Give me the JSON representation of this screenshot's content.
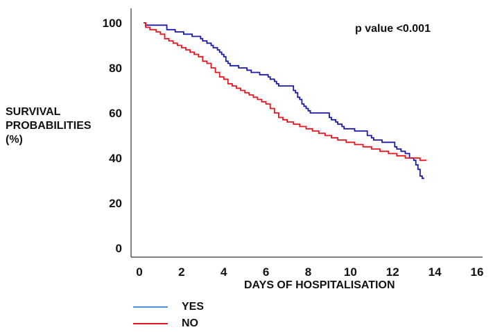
{
  "chart_data": {
    "type": "line",
    "title": "",
    "annotation": "p value <0.001",
    "xlabel": "DAYS OF HOSPITALISATION",
    "ylabel_lines": [
      "SURVIVAL",
      "PROBABILITIES",
      "(%)"
    ],
    "xlim": [
      0,
      16
    ],
    "ylim": [
      0,
      100
    ],
    "x_ticks": [
      0,
      2,
      4,
      6,
      8,
      10,
      12,
      14,
      16
    ],
    "y_ticks": [
      0,
      20,
      40,
      60,
      80,
      100
    ],
    "grid": false,
    "legend_position": "bottom-left",
    "series": [
      {
        "name": "YES",
        "color": "#1a1aa8",
        "legend_color": "#4a90d9",
        "points": [
          [
            0.2,
            100
          ],
          [
            0.3,
            99
          ],
          [
            0.4,
            99
          ],
          [
            1.2,
            99
          ],
          [
            1.3,
            97
          ],
          [
            1.6,
            97
          ],
          [
            1.7,
            96
          ],
          [
            2.0,
            96
          ],
          [
            2.1,
            95
          ],
          [
            2.4,
            95
          ],
          [
            2.5,
            94
          ],
          [
            2.8,
            94
          ],
          [
            2.9,
            93
          ],
          [
            3.0,
            92
          ],
          [
            3.2,
            91
          ],
          [
            3.4,
            90
          ],
          [
            3.5,
            89
          ],
          [
            3.7,
            88
          ],
          [
            3.8,
            87
          ],
          [
            3.9,
            86
          ],
          [
            4.0,
            85
          ],
          [
            4.1,
            83
          ],
          [
            4.2,
            82
          ],
          [
            4.3,
            81
          ],
          [
            4.6,
            81
          ],
          [
            4.7,
            80
          ],
          [
            5.0,
            80
          ],
          [
            5.1,
            79
          ],
          [
            5.3,
            78
          ],
          [
            5.6,
            78
          ],
          [
            5.7,
            77
          ],
          [
            6.0,
            77
          ],
          [
            6.1,
            76
          ],
          [
            6.2,
            75
          ],
          [
            6.4,
            74
          ],
          [
            6.5,
            73
          ],
          [
            6.6,
            72
          ],
          [
            7.2,
            72
          ],
          [
            7.3,
            70
          ],
          [
            7.4,
            69
          ],
          [
            7.5,
            67
          ],
          [
            7.6,
            66
          ],
          [
            7.7,
            64
          ],
          [
            7.8,
            63
          ],
          [
            7.9,
            62
          ],
          [
            8.0,
            61
          ],
          [
            8.1,
            60
          ],
          [
            8.9,
            60
          ],
          [
            9.0,
            58
          ],
          [
            9.1,
            57
          ],
          [
            9.3,
            56
          ],
          [
            9.4,
            55
          ],
          [
            9.6,
            54
          ],
          [
            9.7,
            53
          ],
          [
            10.1,
            53
          ],
          [
            10.2,
            52
          ],
          [
            10.7,
            52
          ],
          [
            10.8,
            50
          ],
          [
            11.0,
            49
          ],
          [
            11.1,
            48
          ],
          [
            11.4,
            48
          ],
          [
            11.5,
            47
          ],
          [
            12.0,
            47
          ],
          [
            12.1,
            45
          ],
          [
            12.2,
            44
          ],
          [
            12.4,
            43
          ],
          [
            12.6,
            42
          ],
          [
            12.8,
            40
          ],
          [
            13.0,
            39
          ],
          [
            13.1,
            37
          ],
          [
            13.2,
            35
          ],
          [
            13.3,
            32
          ],
          [
            13.4,
            31
          ],
          [
            13.5,
            31
          ]
        ]
      },
      {
        "name": "NO",
        "color": "#e8141c",
        "legend_color": "#e8141c",
        "points": [
          [
            0.2,
            100
          ],
          [
            0.3,
            98
          ],
          [
            0.5,
            97
          ],
          [
            0.8,
            96
          ],
          [
            1.0,
            95
          ],
          [
            1.2,
            93
          ],
          [
            1.4,
            92
          ],
          [
            1.6,
            91
          ],
          [
            1.8,
            90
          ],
          [
            2.0,
            89
          ],
          [
            2.2,
            88
          ],
          [
            2.4,
            87
          ],
          [
            2.6,
            86
          ],
          [
            2.8,
            85
          ],
          [
            3.0,
            83
          ],
          [
            3.2,
            82
          ],
          [
            3.4,
            80
          ],
          [
            3.6,
            78
          ],
          [
            3.8,
            76
          ],
          [
            4.0,
            75
          ],
          [
            4.2,
            73
          ],
          [
            4.4,
            72
          ],
          [
            4.6,
            71
          ],
          [
            4.8,
            70
          ],
          [
            5.0,
            69
          ],
          [
            5.2,
            68
          ],
          [
            5.4,
            67
          ],
          [
            5.6,
            66
          ],
          [
            5.8,
            65
          ],
          [
            6.0,
            64
          ],
          [
            6.2,
            62
          ],
          [
            6.4,
            60
          ],
          [
            6.6,
            58
          ],
          [
            6.8,
            57
          ],
          [
            7.0,
            56
          ],
          [
            7.3,
            55
          ],
          [
            7.6,
            54
          ],
          [
            7.9,
            53
          ],
          [
            8.2,
            52
          ],
          [
            8.5,
            51
          ],
          [
            8.8,
            50
          ],
          [
            9.1,
            49
          ],
          [
            9.4,
            48
          ],
          [
            9.8,
            47
          ],
          [
            10.2,
            46
          ],
          [
            10.6,
            45
          ],
          [
            11.0,
            44
          ],
          [
            11.4,
            43
          ],
          [
            11.8,
            42
          ],
          [
            12.2,
            41
          ],
          [
            12.6,
            40
          ],
          [
            13.0,
            40
          ],
          [
            13.3,
            39
          ],
          [
            13.6,
            39
          ]
        ]
      }
    ]
  }
}
